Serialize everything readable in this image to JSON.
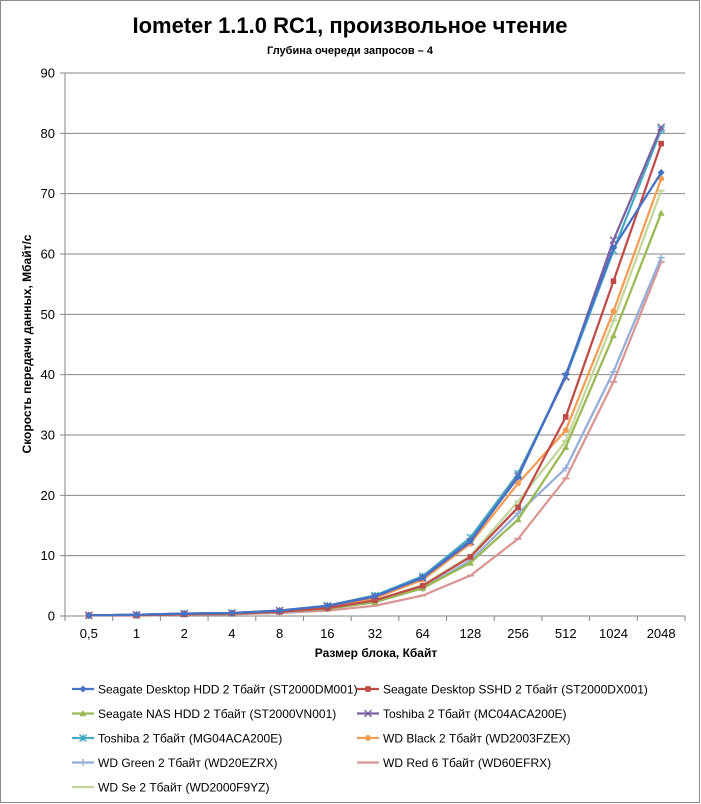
{
  "chart_data": {
    "type": "line",
    "title": "Iometer 1.1.0 RC1, произвольное чтение",
    "subtitle": "Глубина очереди запросов – 4",
    "xlabel": "Размер блока, Кбайт",
    "ylabel": "Скорость передачи данных, Мбайт/с",
    "categories": [
      "0,5",
      "1",
      "2",
      "4",
      "8",
      "16",
      "32",
      "64",
      "128",
      "256",
      "512",
      "1024",
      "2048"
    ],
    "ylim": [
      0,
      90
    ],
    "yticks": [
      0,
      10,
      20,
      30,
      40,
      50,
      60,
      70,
      80,
      90
    ],
    "grid": "horizontal",
    "legend_position": "bottom",
    "series": [
      {
        "name": "Seagate Desktop HDD 2 Тбайт (ST2000DM001)",
        "color": "#4472C4",
        "marker": "diamond",
        "values": [
          0.1,
          0.2,
          0.4,
          0.5,
          0.9,
          1.7,
          3.3,
          6.4,
          12.5,
          23.0,
          40.0,
          61.0,
          73.5
        ]
      },
      {
        "name": "Seagate Desktop SSHD 2 Тбайт (ST2000DX001)",
        "color": "#BE4B48",
        "marker": "square",
        "values": [
          0.1,
          0.1,
          0.3,
          0.4,
          0.7,
          1.3,
          2.6,
          5.0,
          9.8,
          18.0,
          33.0,
          55.5,
          78.3
        ]
      },
      {
        "name": "Seagate NAS HDD 2 Тбайт (ST2000VN001)",
        "color": "#98B954",
        "marker": "triangle",
        "values": [
          0.1,
          0.1,
          0.3,
          0.4,
          0.7,
          1.2,
          2.3,
          4.6,
          8.8,
          16.0,
          28.0,
          46.5,
          66.8
        ]
      },
      {
        "name": "Toshiba 2 Тбайт (MC04ACA200E)",
        "color": "#7D60A0",
        "marker": "x",
        "values": [
          0.1,
          0.2,
          0.4,
          0.5,
          0.9,
          1.6,
          3.2,
          6.3,
          12.3,
          23.2,
          39.7,
          62.3,
          81.0
        ]
      },
      {
        "name": "Toshiba 2 Тбайт (MG04ACA200E)",
        "color": "#46AAC5",
        "marker": "star",
        "values": [
          0.1,
          0.2,
          0.4,
          0.5,
          0.9,
          1.7,
          3.4,
          6.6,
          13.0,
          23.6,
          39.6,
          60.6,
          80.6
        ]
      },
      {
        "name": "WD Black 2 Тбайт (WD2003FZEX)",
        "color": "#F59D56",
        "marker": "circle",
        "values": [
          0.1,
          0.2,
          0.3,
          0.5,
          0.8,
          1.5,
          3.0,
          6.0,
          12.0,
          22.0,
          30.8,
          50.5,
          72.5
        ]
      },
      {
        "name": "WD Green 2 Тбайт (WD20EZRX)",
        "color": "#95AFD8",
        "marker": "plus",
        "values": [
          0.1,
          0.1,
          0.3,
          0.4,
          0.6,
          1.2,
          2.3,
          4.6,
          9.2,
          17.0,
          24.5,
          40.5,
          59.4
        ]
      },
      {
        "name": "WD Red 6 Тбайт (WD60EFRX)",
        "color": "#DA9694",
        "marker": "dash",
        "values": [
          0.1,
          0.1,
          0.2,
          0.3,
          0.5,
          0.9,
          1.7,
          3.4,
          6.7,
          12.8,
          22.8,
          38.8,
          58.7
        ]
      },
      {
        "name": "WD Se 2 Тбайт (WD2000F9YZ)",
        "color": "#C3D69B",
        "marker": "dash",
        "values": [
          0.1,
          0.1,
          0.3,
          0.4,
          0.7,
          1.3,
          2.6,
          5.1,
          10.0,
          19.0,
          29.0,
          49.0,
          70.5
        ]
      }
    ]
  }
}
